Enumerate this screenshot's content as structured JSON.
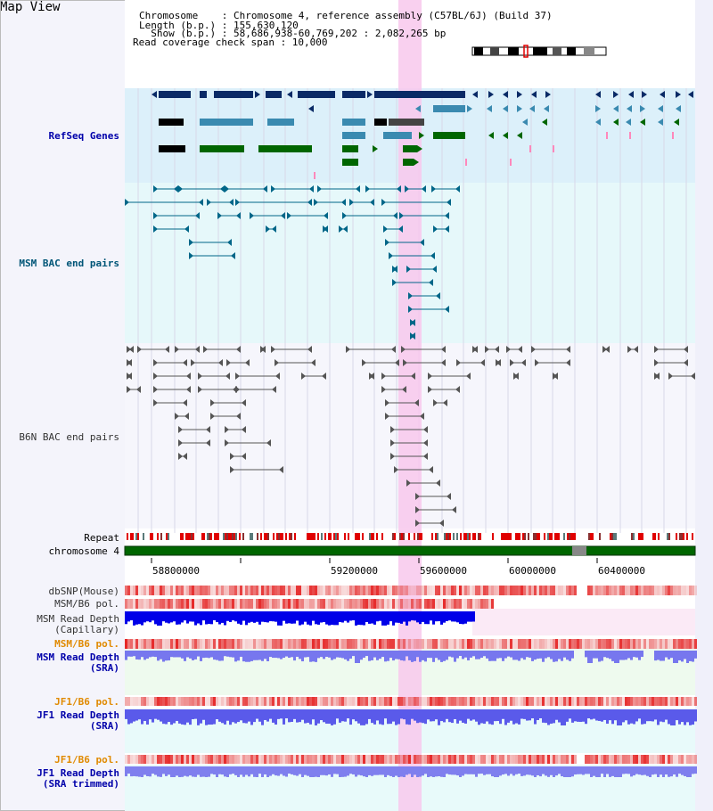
{
  "page": {
    "title": "Map View"
  },
  "info": {
    "chromosome_line": "Chromosome    : Chromosome 4, reference assembly (C57BL/6J) (Build 37)",
    "length_line": "Length (b.p.) : 155,630,120",
    "show_line": "  Show (b.p.) : 58,686,938-60,769,202 : 2,082,265 bp",
    "coverage_line": "Read coverage check span : 10,000"
  },
  "tracks": {
    "refseq": "RefSeq Genes",
    "msm_bac": "MSM BAC end pairs",
    "b6n_bac": "B6N BAC end pairs",
    "repeat": "Repeat",
    "chromosome": "chromosome 4",
    "dbsnp": "dbSNP(Mouse)",
    "msm_b6_pol_1": "MSM/B6 pol.",
    "msm_depth_cap_1": "MSM Read Depth",
    "msm_depth_cap_2": "(Capillary)",
    "msm_b6_pol_2": "MSM/B6 pol.",
    "msm_depth_sra_1": "MSM Read Depth",
    "msm_depth_sra_2": "(SRA)",
    "jf1_b6_pol_1": "JF1/B6 pol.",
    "jf1_depth_1": "JF1 Read Depth",
    "jf1_depth_2": "(SRA)",
    "jf1_b6_pol_2": "JF1/B6 pol.",
    "jf1_trim_1": "JF1 Read Depth",
    "jf1_trim_2": "(SRA trimmed)"
  },
  "axis": {
    "ticks": [
      "58800000",
      "59200000",
      "59600000",
      "60000000",
      "60400000"
    ]
  },
  "colors": {
    "refseq_bg": "#dcf0fa",
    "msm_bac_bg": "#e6f8fa",
    "b6n_bac_bg": "#f4f4fb",
    "highlight": "#f8d0ec",
    "refseq_label": "#0000aa",
    "msm_label": "#005577",
    "pol_label": "#e08a00",
    "depth_label": "#0000aa"
  }
}
